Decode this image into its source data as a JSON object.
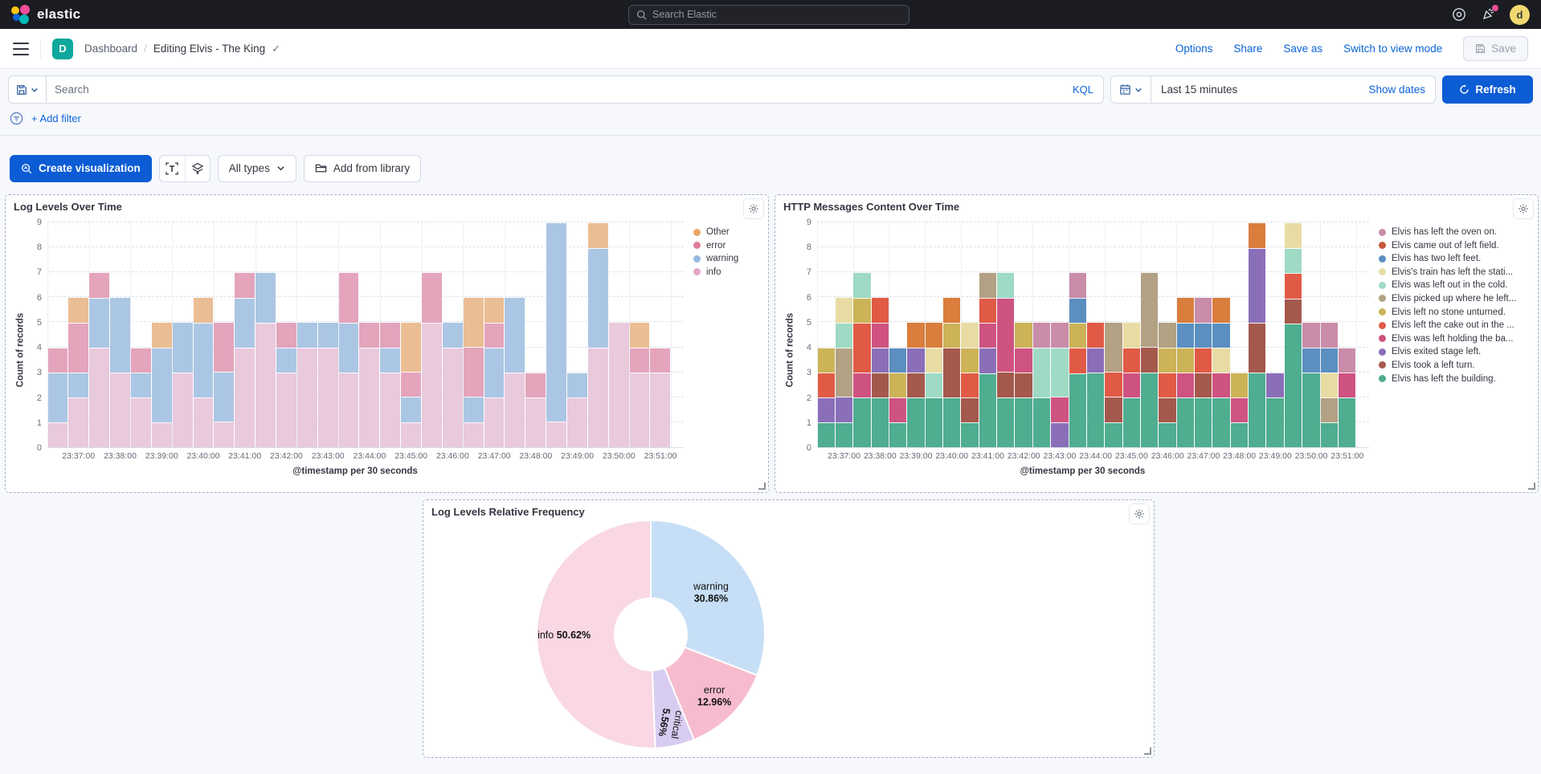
{
  "topbar": {
    "brand": "elastic",
    "search_placeholder": "Search Elastic",
    "avatar_initial": "d"
  },
  "navbar": {
    "space_badge": "D",
    "breadcrumb_root": "Dashboard",
    "breadcrumb_sep": "/",
    "breadcrumb_current": "Editing Elvis - The King",
    "check_glyph": "✓",
    "links": [
      "Options",
      "Share",
      "Save as",
      "Switch to view mode"
    ],
    "save_label": "Save"
  },
  "querybar": {
    "search_placeholder": "Search",
    "kql_label": "KQL",
    "time_range": "Last 15 minutes",
    "show_dates_label": "Show dates",
    "refresh_label": "Refresh"
  },
  "filterbar": {
    "add_filter_label": "+ Add filter"
  },
  "toolbar": {
    "create_viz_label": "Create visualization",
    "text_tool_glyph": "T",
    "all_types_label": "All types",
    "add_library_label": "Add from library"
  },
  "chart_data": [
    {
      "type": "bar",
      "stacked": true,
      "panel_title": "Log Levels Over Time",
      "xlabel": "@timestamp per 30 seconds",
      "ylabel": "Count of records",
      "ylim": [
        0,
        9
      ],
      "yticks": [
        0,
        1,
        2,
        3,
        4,
        5,
        6,
        7,
        8,
        9
      ],
      "x_tick_labels": [
        "23:37:00",
        "23:38:00",
        "23:39:00",
        "23:40:00",
        "23:41:00",
        "23:42:00",
        "23:43:00",
        "23:44:00",
        "23:45:00",
        "23:46:00",
        "23:47:00",
        "23:48:00",
        "23:49:00",
        "23:50:00",
        "23:51:00"
      ],
      "bars_per_tick": 2,
      "series": [
        {
          "name": "info",
          "color": "#E9C9DC"
        },
        {
          "name": "warning",
          "color": "#ABC6E4"
        },
        {
          "name": "error",
          "color": "#E3A4BC"
        },
        {
          "name": "Other",
          "color": "#EBBD94"
        }
      ],
      "legend": [
        {
          "label": "Other",
          "color": "#E8A666"
        },
        {
          "label": "error",
          "color": "#DF7F9A"
        },
        {
          "label": "warning",
          "color": "#96BBE0"
        },
        {
          "label": "info",
          "color": "#E2A6C7"
        }
      ],
      "values": [
        [
          1,
          2,
          1,
          0
        ],
        [
          2,
          1,
          2,
          1
        ],
        [
          4,
          2,
          1,
          0
        ],
        [
          3,
          3,
          0,
          0
        ],
        [
          2,
          1,
          1,
          0
        ],
        [
          1,
          3,
          0,
          1
        ],
        [
          3,
          2,
          0,
          0
        ],
        [
          2,
          3,
          0,
          1
        ],
        [
          1,
          2,
          2,
          0
        ],
        [
          4,
          2,
          1,
          0
        ],
        [
          5,
          2,
          0,
          0
        ],
        [
          3,
          1,
          1,
          0
        ],
        [
          4,
          1,
          0,
          0
        ],
        [
          4,
          1,
          0,
          0
        ],
        [
          3,
          2,
          2,
          0
        ],
        [
          4,
          0,
          1,
          0
        ],
        [
          3,
          1,
          1,
          0
        ],
        [
          1,
          1,
          1,
          2
        ],
        [
          5,
          0,
          2,
          0
        ],
        [
          4,
          1,
          0,
          0
        ],
        [
          1,
          1,
          2,
          2
        ],
        [
          2,
          2,
          1,
          1
        ],
        [
          3,
          3,
          0,
          0
        ],
        [
          2,
          0,
          1,
          0
        ],
        [
          1,
          8,
          0,
          0
        ],
        [
          2,
          1,
          0,
          0
        ],
        [
          4,
          4,
          0,
          1
        ],
        [
          5,
          0,
          0,
          0
        ],
        [
          3,
          0,
          1,
          1
        ],
        [
          3,
          0,
          1,
          0
        ]
      ]
    },
    {
      "type": "bar",
      "stacked": true,
      "panel_title": "HTTP Messages Content Over Time",
      "xlabel": "@timestamp per 30 seconds",
      "ylabel": "Count of records",
      "ylim": [
        0,
        9
      ],
      "yticks": [
        0,
        1,
        2,
        3,
        4,
        5,
        6,
        7,
        8,
        9
      ],
      "x_tick_labels": [
        "23:37:00",
        "23:38:00",
        "23:39:00",
        "23:40:00",
        "23:41:00",
        "23:42:00",
        "23:43:00",
        "23:44:00",
        "23:45:00",
        "23:46:00",
        "23:47:00",
        "23:48:00",
        "23:49:00",
        "23:50:00",
        "23:51:00"
      ],
      "bars_per_tick": 2,
      "series": [
        {
          "name": "Elvis has left the building.",
          "color": "#4FAD90"
        },
        {
          "name": "Elvis took a left turn.",
          "color": "#A4594C"
        },
        {
          "name": "Elvis exited stage left.",
          "color": "#8A6FB8"
        },
        {
          "name": "Elvis was left holding the ba...",
          "color": "#CE5381"
        },
        {
          "name": "Elvis left the cake out in the ...",
          "color": "#E15A45"
        },
        {
          "name": "Elvis left no stone unturned.",
          "color": "#CCB357"
        },
        {
          "name": "Elvis picked up where he left...",
          "color": "#B2A183"
        },
        {
          "name": "Elvis was left out in the cold.",
          "color": "#9FDAC4"
        },
        {
          "name": "Elvis's train has left the stati...",
          "color": "#E8DCA4"
        },
        {
          "name": "Elvis has two left feet.",
          "color": "#5B8FC0"
        },
        {
          "name": "Elvis came out of left field.",
          "color": "#D97E3C"
        },
        {
          "name": "Elvis has left the oven on.",
          "color": "#C98CA9"
        }
      ],
      "legend": [
        {
          "label": "Elvis has left the oven on.",
          "color": "#C98CA9"
        },
        {
          "label": "Elvis came out of left field.",
          "color": "#C4573B"
        },
        {
          "label": "Elvis has two left feet.",
          "color": "#5B8FC0"
        },
        {
          "label": "Elvis's train has left the stati...",
          "color": "#E8DCA4"
        },
        {
          "label": "Elvis was left out in the cold.",
          "color": "#9FDAC4"
        },
        {
          "label": "Elvis picked up where he left...",
          "color": "#B2A183"
        },
        {
          "label": "Elvis left no stone unturned.",
          "color": "#CCB357"
        },
        {
          "label": "Elvis left the cake out in the ...",
          "color": "#E15A45"
        },
        {
          "label": "Elvis was left holding the ba...",
          "color": "#CE5381"
        },
        {
          "label": "Elvis exited stage left.",
          "color": "#8A6FB8"
        },
        {
          "label": "Elvis took a left turn.",
          "color": "#A4594C"
        },
        {
          "label": "Elvis has left the building.",
          "color": "#4FAD90"
        }
      ],
      "values": [
        [
          1,
          0,
          1,
          0,
          1,
          1,
          0,
          0,
          0,
          0,
          0,
          0
        ],
        [
          1,
          0,
          1,
          0,
          0,
          0,
          2,
          1,
          1,
          0,
          0,
          0
        ],
        [
          2,
          0,
          0,
          1,
          2,
          1,
          0,
          1,
          0,
          0,
          0,
          0
        ],
        [
          2,
          1,
          1,
          1,
          1,
          0,
          0,
          0,
          0,
          0,
          0,
          0
        ],
        [
          1,
          0,
          0,
          1,
          0,
          1,
          0,
          0,
          0,
          1,
          0,
          0
        ],
        [
          2,
          1,
          1,
          0,
          0,
          0,
          0,
          0,
          0,
          0,
          1,
          0
        ],
        [
          2,
          0,
          0,
          0,
          0,
          0,
          0,
          1,
          1,
          0,
          1,
          0
        ],
        [
          2,
          2,
          0,
          0,
          0,
          1,
          0,
          0,
          0,
          0,
          1,
          0
        ],
        [
          1,
          1,
          0,
          0,
          1,
          1,
          0,
          0,
          1,
          0,
          0,
          0
        ],
        [
          3,
          0,
          1,
          1,
          1,
          0,
          1,
          0,
          0,
          0,
          0,
          0
        ],
        [
          2,
          1,
          0,
          3,
          0,
          0,
          0,
          1,
          0,
          0,
          0,
          0
        ],
        [
          2,
          1,
          0,
          1,
          0,
          1,
          0,
          0,
          0,
          0,
          0,
          0
        ],
        [
          2,
          0,
          0,
          0,
          0,
          0,
          0,
          2,
          0,
          0,
          0,
          1
        ],
        [
          0,
          0,
          1,
          1,
          0,
          0,
          0,
          2,
          0,
          0,
          0,
          1
        ],
        [
          3,
          0,
          0,
          0,
          1,
          1,
          0,
          0,
          0,
          1,
          0,
          1
        ],
        [
          3,
          0,
          1,
          0,
          1,
          0,
          0,
          0,
          0,
          0,
          0,
          0
        ],
        [
          1,
          1,
          0,
          0,
          1,
          0,
          2,
          0,
          0,
          0,
          0,
          0
        ],
        [
          2,
          0,
          0,
          1,
          1,
          0,
          0,
          0,
          1,
          0,
          0,
          0
        ],
        [
          3,
          1,
          0,
          0,
          0,
          0,
          3,
          0,
          0,
          0,
          0,
          0
        ],
        [
          1,
          1,
          0,
          0,
          1,
          1,
          1,
          0,
          0,
          0,
          0,
          0
        ],
        [
          2,
          0,
          0,
          1,
          0,
          1,
          0,
          0,
          0,
          1,
          1,
          0
        ],
        [
          2,
          1,
          0,
          0,
          1,
          0,
          0,
          0,
          0,
          1,
          0,
          1
        ],
        [
          2,
          0,
          0,
          1,
          0,
          0,
          0,
          0,
          1,
          1,
          1,
          0
        ],
        [
          1,
          0,
          0,
          1,
          0,
          1,
          0,
          0,
          0,
          0,
          0,
          0
        ],
        [
          3,
          2,
          3,
          0,
          0,
          0,
          0,
          0,
          0,
          0,
          1,
          0
        ],
        [
          2,
          0,
          1,
          0,
          0,
          0,
          0,
          0,
          0,
          0,
          0,
          0
        ],
        [
          5,
          1,
          0,
          0,
          1,
          0,
          0,
          1,
          1,
          0,
          0,
          0
        ],
        [
          3,
          0,
          0,
          0,
          0,
          0,
          0,
          0,
          0,
          1,
          0,
          1
        ],
        [
          1,
          0,
          0,
          0,
          0,
          0,
          1,
          0,
          1,
          1,
          0,
          1
        ],
        [
          2,
          0,
          0,
          1,
          0,
          0,
          0,
          0,
          0,
          0,
          0,
          1
        ]
      ]
    },
    {
      "type": "pie",
      "donut": true,
      "panel_title": "Log Levels Relative Frequency",
      "slices": [
        {
          "label": "warning",
          "pct": 30.86,
          "pct_text": "30.86%",
          "color": "#C7DFF6",
          "label_r": 0.64,
          "rotation": 0,
          "inline": false
        },
        {
          "label": "error",
          "pct": 12.96,
          "pct_text": "12.96%",
          "color": "#F6BCCD",
          "label_r": 0.78,
          "rotation": 0,
          "inline": false
        },
        {
          "label": "critical",
          "pct": 5.56,
          "pct_text": "5.56%",
          "color": "#D9CCF1",
          "label_r": 0.8,
          "rotation": 100,
          "inline": false
        },
        {
          "label": "info",
          "pct": 50.62,
          "pct_text": "50.62%",
          "color": "#F9D7E4",
          "label_r": 0.76,
          "rotation": 0,
          "inline": true
        }
      ]
    }
  ]
}
